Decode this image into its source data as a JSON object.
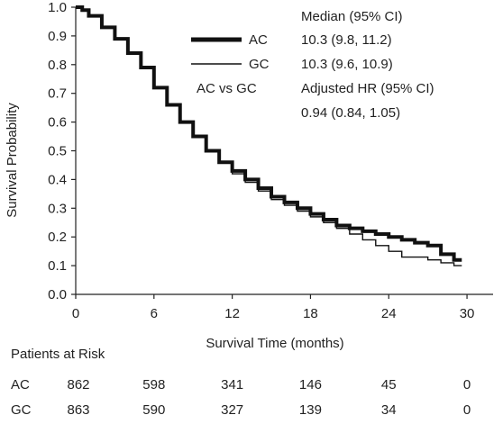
{
  "chart_data": {
    "type": "line",
    "xlabel": "Survival Time (months)",
    "ylabel": "Survival Probability",
    "xlim": [
      0,
      32
    ],
    "ylim": [
      0,
      1.0
    ],
    "x_ticks": [
      0,
      6,
      12,
      18,
      24,
      30
    ],
    "y_ticks": [
      "0.0",
      "0.1",
      "0.2",
      "0.3",
      "0.4",
      "0.5",
      "0.6",
      "0.7",
      "0.8",
      "0.9",
      "1.0"
    ],
    "grid": false,
    "legend_placement": "top-right",
    "series": [
      {
        "name": "AC",
        "style": "thick",
        "color": "#111111",
        "x": [
          0,
          0.5,
          1,
          2,
          3,
          4,
          5,
          6,
          7,
          8,
          9,
          10,
          11,
          12,
          13,
          14,
          15,
          16,
          17,
          18,
          19,
          20,
          21,
          22,
          23,
          24,
          25,
          26,
          27,
          28,
          29,
          29.6
        ],
        "y": [
          1.0,
          0.99,
          0.97,
          0.93,
          0.89,
          0.84,
          0.79,
          0.72,
          0.66,
          0.6,
          0.55,
          0.5,
          0.46,
          0.43,
          0.4,
          0.37,
          0.34,
          0.32,
          0.3,
          0.28,
          0.26,
          0.24,
          0.23,
          0.22,
          0.21,
          0.2,
          0.19,
          0.18,
          0.17,
          0.14,
          0.12,
          0.12
        ]
      },
      {
        "name": "GC",
        "style": "thin",
        "color": "#111111",
        "x": [
          0,
          0.5,
          1,
          2,
          3,
          4,
          5,
          6,
          7,
          8,
          9,
          10,
          11,
          12,
          13,
          14,
          15,
          16,
          17,
          18,
          19,
          20,
          21,
          22,
          23,
          24,
          25,
          26,
          27,
          28,
          29,
          29.6
        ],
        "y": [
          1.0,
          0.99,
          0.97,
          0.93,
          0.89,
          0.84,
          0.79,
          0.72,
          0.66,
          0.6,
          0.55,
          0.5,
          0.46,
          0.42,
          0.39,
          0.36,
          0.33,
          0.31,
          0.29,
          0.27,
          0.25,
          0.23,
          0.21,
          0.19,
          0.17,
          0.15,
          0.13,
          0.13,
          0.12,
          0.11,
          0.1,
          0.1
        ]
      }
    ],
    "annotations": {
      "median_header": "Median (95% CI)",
      "ac_label": "AC",
      "ac_median": "10.3  (9.8, 11.2)",
      "gc_label": "GC",
      "gc_median": "10.3  (9.6, 10.9)",
      "comparison": "AC vs GC",
      "hr_header": "Adjusted HR (95% CI)",
      "hr_value": "0.94 (0.84, 1.05)"
    },
    "risk_table": {
      "title": "Patients at Risk",
      "rows": [
        {
          "label": "AC",
          "values": [
            "862",
            "598",
            "341",
            "146",
            "45",
            "0"
          ]
        },
        {
          "label": "GC",
          "values": [
            "863",
            "590",
            "327",
            "139",
            "34",
            "0"
          ]
        }
      ]
    }
  }
}
